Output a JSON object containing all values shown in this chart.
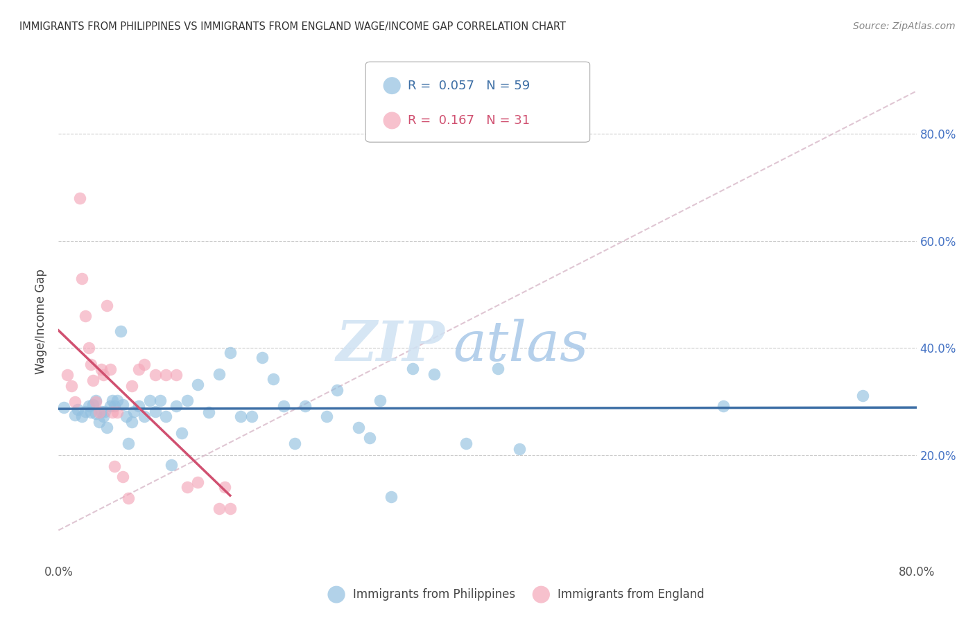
{
  "title": "IMMIGRANTS FROM PHILIPPINES VS IMMIGRANTS FROM ENGLAND WAGE/INCOME GAP CORRELATION CHART",
  "source": "Source: ZipAtlas.com",
  "ylabel": "Wage/Income Gap",
  "xlim": [
    0.0,
    0.8
  ],
  "ylim": [
    0.0,
    0.9
  ],
  "yticks": [
    0.2,
    0.4,
    0.6,
    0.8
  ],
  "ytick_labels": [
    "20.0%",
    "40.0%",
    "60.0%",
    "80.0%"
  ],
  "xticks": [
    0.0,
    0.1,
    0.2,
    0.3,
    0.4,
    0.5,
    0.6,
    0.7,
    0.8
  ],
  "xtick_labels": [
    "0.0%",
    "",
    "",
    "",
    "",
    "",
    "",
    "",
    "80.0%"
  ],
  "blue_color": "#92c0e0",
  "pink_color": "#f4a7b9",
  "blue_line_color": "#3c6ea5",
  "pink_line_color": "#d05070",
  "dashed_line_color": "#d8b8c8",
  "legend_blue_label": "Immigrants from Philippines",
  "legend_pink_label": "Immigrants from England",
  "R_blue": "0.057",
  "N_blue": "59",
  "R_pink": "0.167",
  "N_pink": "31",
  "watermark_zip": "ZIP",
  "watermark_atlas": "atlas",
  "blue_x": [
    0.005,
    0.015,
    0.018,
    0.022,
    0.025,
    0.028,
    0.03,
    0.032,
    0.035,
    0.035,
    0.038,
    0.04,
    0.042,
    0.043,
    0.045,
    0.048,
    0.05,
    0.052,
    0.055,
    0.058,
    0.06,
    0.063,
    0.065,
    0.068,
    0.07,
    0.075,
    0.08,
    0.085,
    0.09,
    0.095,
    0.1,
    0.105,
    0.11,
    0.115,
    0.12,
    0.13,
    0.14,
    0.15,
    0.16,
    0.17,
    0.18,
    0.19,
    0.2,
    0.21,
    0.22,
    0.23,
    0.25,
    0.26,
    0.28,
    0.29,
    0.3,
    0.31,
    0.33,
    0.35,
    0.38,
    0.41,
    0.43,
    0.62,
    0.75
  ],
  "blue_y": [
    0.29,
    0.275,
    0.285,
    0.272,
    0.282,
    0.292,
    0.28,
    0.295,
    0.302,
    0.278,
    0.262,
    0.282,
    0.272,
    0.282,
    0.252,
    0.292,
    0.302,
    0.292,
    0.302,
    0.432,
    0.295,
    0.272,
    0.222,
    0.262,
    0.282,
    0.292,
    0.272,
    0.302,
    0.282,
    0.302,
    0.272,
    0.182,
    0.292,
    0.242,
    0.302,
    0.332,
    0.28,
    0.352,
    0.392,
    0.272,
    0.272,
    0.382,
    0.342,
    0.292,
    0.222,
    0.292,
    0.272,
    0.322,
    0.252,
    0.232,
    0.302,
    0.122,
    0.362,
    0.352,
    0.222,
    0.362,
    0.212,
    0.292,
    0.312
  ],
  "pink_x": [
    0.008,
    0.012,
    0.015,
    0.02,
    0.022,
    0.025,
    0.028,
    0.03,
    0.032,
    0.035,
    0.038,
    0.04,
    0.042,
    0.045,
    0.048,
    0.05,
    0.052,
    0.055,
    0.06,
    0.065,
    0.068,
    0.075,
    0.08,
    0.09,
    0.1,
    0.11,
    0.12,
    0.13,
    0.15,
    0.155,
    0.16
  ],
  "pink_y": [
    0.35,
    0.33,
    0.3,
    0.68,
    0.53,
    0.46,
    0.4,
    0.37,
    0.34,
    0.3,
    0.28,
    0.36,
    0.35,
    0.48,
    0.36,
    0.28,
    0.18,
    0.28,
    0.16,
    0.12,
    0.33,
    0.36,
    0.37,
    0.35,
    0.35,
    0.35,
    0.14,
    0.15,
    0.1,
    0.14,
    0.1
  ]
}
